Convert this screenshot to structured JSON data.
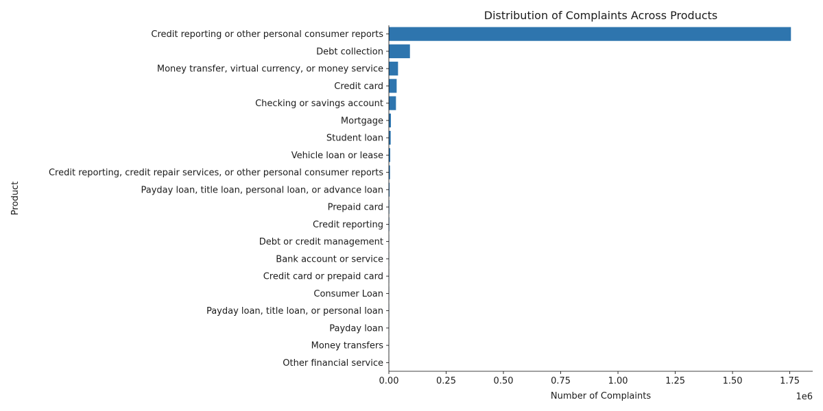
{
  "chart_data": {
    "type": "bar",
    "orientation": "horizontal",
    "title": "Distribution of Complaints Across Products",
    "xlabel": "Number of Complaints",
    "ylabel": "Product",
    "x_offset_label": "1e6",
    "xlim": [
      0,
      1.85
    ],
    "x_ticks": [
      "0.00",
      "0.25",
      "0.50",
      "0.75",
      "1.00",
      "1.25",
      "1.50",
      "1.75"
    ],
    "x_tick_values": [
      0,
      0.25,
      0.5,
      0.75,
      1.0,
      1.25,
      1.5,
      1.75
    ],
    "value_scale": 1000000,
    "grid": false,
    "bar_color": "#2e75ae",
    "categories": [
      "Credit reporting or other personal consumer reports",
      "Debt collection",
      "Money transfer, virtual currency, or money service",
      "Credit card",
      "Checking or savings account",
      "Mortgage",
      "Student loan",
      "Vehicle loan or lease",
      "Credit reporting, credit repair services, or other personal consumer reports",
      "Payday loan, title loan, personal loan, or advance loan",
      "Prepaid card",
      "Credit reporting",
      "Debt or credit management",
      "Bank account or service",
      "Credit card or prepaid card",
      "Consumer Loan",
      "Payday loan, title loan, or personal loan",
      "Payday loan",
      "Money transfers",
      "Other financial service"
    ],
    "values": [
      1.755,
      0.092,
      0.04,
      0.034,
      0.031,
      0.009,
      0.008,
      0.006,
      0.005,
      0.003,
      0.002,
      0.002,
      0.001,
      0.001,
      0.001,
      0.001,
      0.001,
      0.0005,
      0.0005,
      0.0003
    ]
  }
}
